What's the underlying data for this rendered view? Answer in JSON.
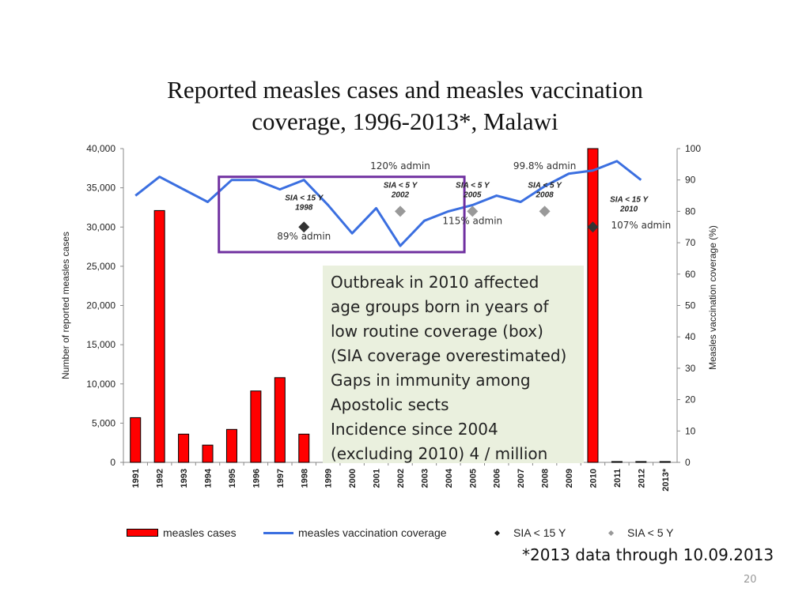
{
  "title_lines": [
    "Reported measles cases and measles vaccination",
    "coverage, 1996-2013*, Malawi"
  ],
  "chart_data": {
    "type": "bar+line",
    "title": "Reported measles cases and measles vaccination coverage, 1996-2013*, Malawi",
    "categories": [
      "1991",
      "1992",
      "1993",
      "1994",
      "1995",
      "1996",
      "1997",
      "1998",
      "1999",
      "2000",
      "2001",
      "2002",
      "2003",
      "2004",
      "2005",
      "2006",
      "2007",
      "2008",
      "2009",
      "2010",
      "2011",
      "2012",
      "2013*"
    ],
    "series": [
      {
        "name": "measles cases",
        "type": "bar",
        "axis": "left",
        "color": "#ff0000",
        "values": [
          5700,
          32100,
          3600,
          2200,
          4200,
          9100,
          10800,
          3600,
          null,
          null,
          null,
          null,
          null,
          null,
          null,
          null,
          null,
          null,
          null,
          40000,
          30,
          40,
          40
        ]
      },
      {
        "name": "measles vaccination coverage",
        "type": "line",
        "axis": "right",
        "color": "#3b6fe0",
        "values": [
          85,
          91,
          87,
          83,
          90,
          90,
          87,
          90,
          82,
          73,
          81,
          69,
          77,
          80,
          82,
          85,
          83,
          88,
          92,
          93,
          96,
          90,
          null
        ]
      },
      {
        "name": "SIA < 15 Y",
        "type": "marker",
        "axis": "right",
        "color": "#333333",
        "points": [
          {
            "x": "1998",
            "y": 75
          },
          {
            "x": "2010",
            "y": 75
          }
        ]
      },
      {
        "name": "SIA < 5 Y",
        "type": "marker",
        "axis": "right",
        "color": "#999999",
        "points": [
          {
            "x": "2002",
            "y": 80
          },
          {
            "x": "2005",
            "y": 80
          },
          {
            "x": "2008",
            "y": 80
          }
        ]
      }
    ],
    "ylabel": "Number of reported measles cases",
    "y2label": "Measles vaccination coverage (%)",
    "ylim": [
      0,
      40000
    ],
    "y2lim": [
      0,
      100
    ],
    "yticks": [
      0,
      5000,
      10000,
      15000,
      20000,
      25000,
      30000,
      35000,
      40000
    ],
    "yticks_text": [
      "0",
      "5,000",
      "10,000",
      "15,000",
      "20,000",
      "25,000",
      "30,000",
      "35,000",
      "40,000"
    ],
    "y2ticks": [
      0,
      10,
      20,
      30,
      40,
      50,
      60,
      70,
      80,
      90,
      100
    ],
    "sia_labels": [
      {
        "line1": "SIA < 15 Y",
        "line2": "1998",
        "x": "1998",
        "y": 83.5
      },
      {
        "line1": "SIA < 5 Y",
        "line2": "2002",
        "x": "2002",
        "y": 87.5
      },
      {
        "line1": "SIA < 5 Y",
        "line2": "2005",
        "x": "2005",
        "y": 87.5
      },
      {
        "line1": "SIA < 5 Y",
        "line2": "2008",
        "x": "2008",
        "y": 87.5
      },
      {
        "line1": "SIA < 15 Y",
        "line2": "2010",
        "x": "2011.5",
        "y": 83
      }
    ],
    "annotations": [
      {
        "text": "120% admin",
        "x": "2002",
        "y": 93.5
      },
      {
        "text": "99.8% admin",
        "x": "2008",
        "y": 93.5
      },
      {
        "text": "89% admin",
        "x": "1998",
        "y": 71
      },
      {
        "text": "115% admin",
        "x": "2005",
        "y": 76
      },
      {
        "text": "107% admin",
        "x": "2012",
        "y": 74.5
      }
    ],
    "legend": [
      "measles cases",
      "measles vaccination coverage",
      "SIA < 15 Y",
      "SIA < 5 Y"
    ],
    "legend_position": "bottom",
    "highlight_box": {
      "x_from": "1995",
      "x_to": "2005",
      "y_from": 67,
      "y_to": 91,
      "color": "#7030a0"
    }
  },
  "callout_lines": [
    "Outbreak in 2010 affected",
    "age groups born in years of",
    "low routine coverage (box)",
    "(SIA coverage overestimated)",
    "Gaps in immunity among",
    "Apostolic sects",
    "Incidence since 2004",
    "(excluding 2010) 4 / million"
  ],
  "footnote": "*2013 data through 10.09.2013",
  "page_number": "20"
}
